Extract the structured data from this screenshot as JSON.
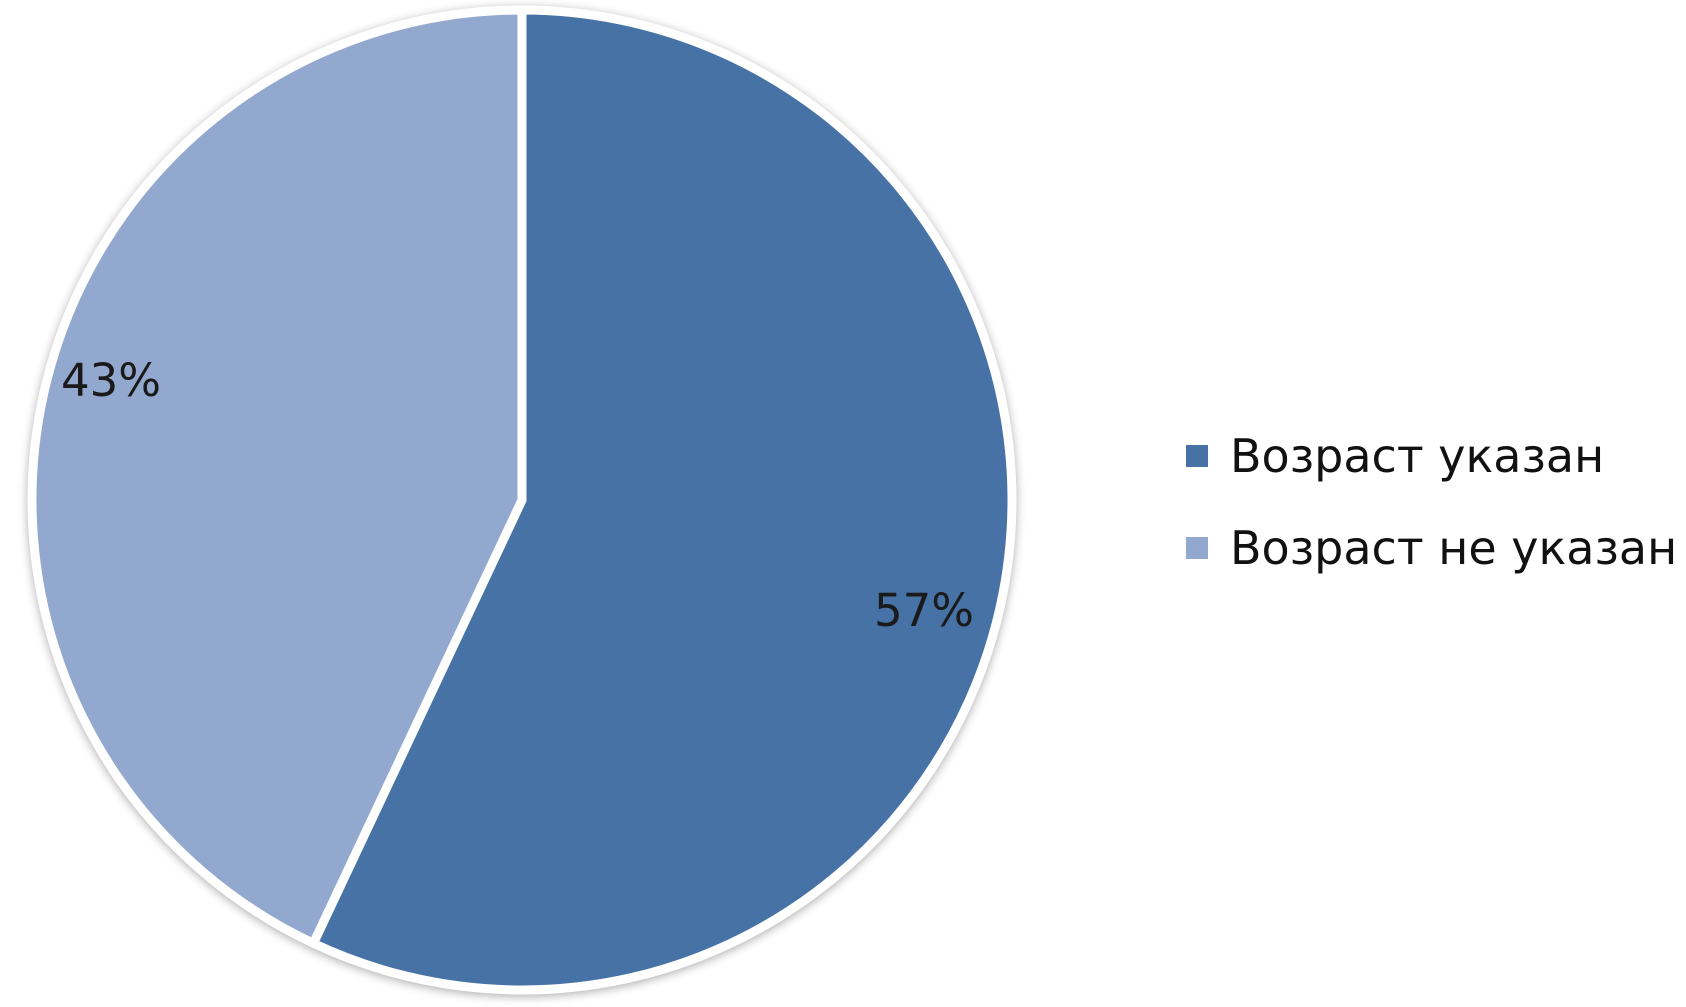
{
  "chart_data": {
    "type": "pie",
    "categories": [
      "Возраст указан",
      "Возраст не указан"
    ],
    "values": [
      57,
      43
    ],
    "data_labels": [
      "57%",
      "43%"
    ],
    "colors": [
      "#4672A6",
      "#93A8CE"
    ],
    "title": "",
    "legend_position": "right"
  }
}
